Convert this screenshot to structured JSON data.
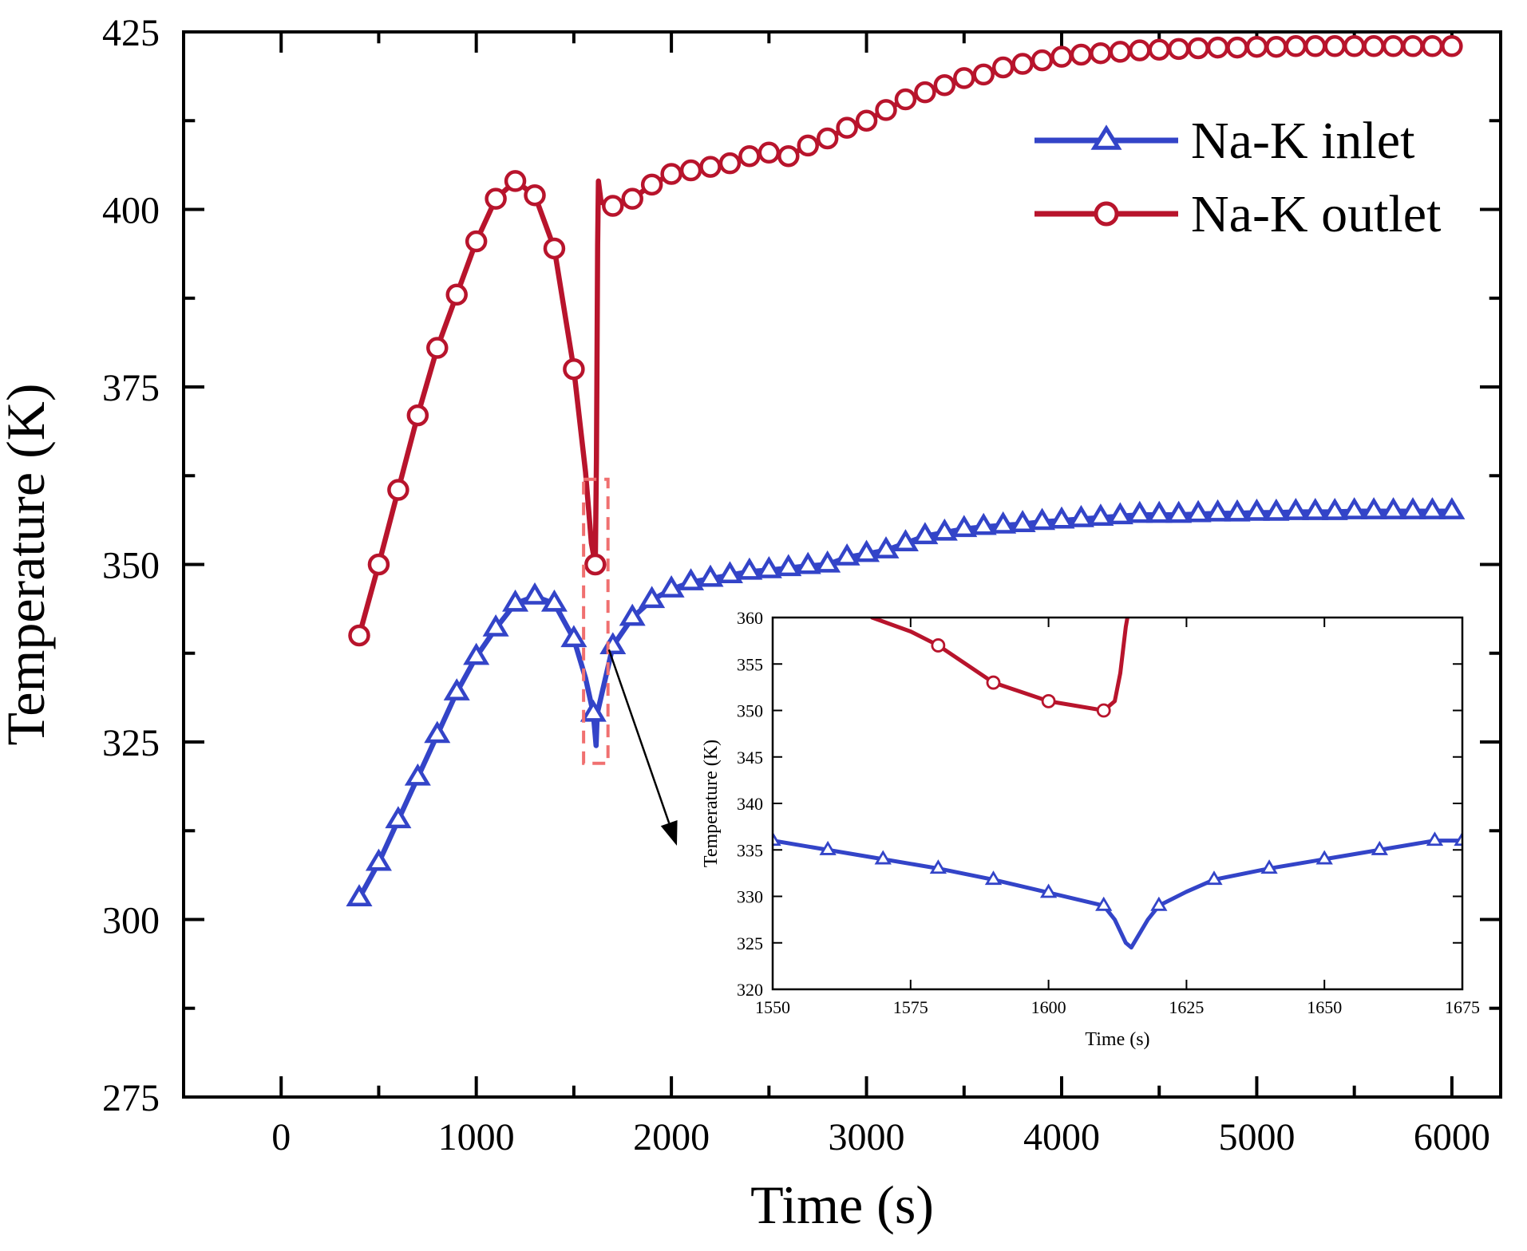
{
  "chart_data": [
    {
      "type": "line",
      "xlabel": "Time (s)",
      "ylabel": "Temperature (K)",
      "xlim": [
        -500,
        6250
      ],
      "ylim": [
        275,
        425
      ],
      "xticks": [
        0,
        1000,
        2000,
        3000,
        4000,
        5000,
        6000
      ],
      "yticks": [
        275,
        300,
        325,
        350,
        375,
        400,
        425
      ],
      "xtick_labels": [
        "0",
        "1000",
        "2000",
        "3000",
        "4000",
        "5000",
        "6000"
      ],
      "ytick_labels": [
        "275",
        "300",
        "325",
        "350",
        "375",
        "400",
        "425"
      ],
      "legend_position": "top-right",
      "grid": false,
      "series": [
        {
          "name": "Na-K inlet",
          "color": "#3344c8",
          "marker": "triangle",
          "x": [
            400,
            500,
            600,
            700,
            800,
            900,
            1000,
            1100,
            1200,
            1300,
            1400,
            1500,
            1560,
            1600,
            1614,
            1620,
            1700,
            1800,
            1900,
            2000,
            2100,
            2200,
            2300,
            2400,
            2500,
            2600,
            2700,
            2800,
            2900,
            3000,
            3100,
            3200,
            3300,
            3400,
            3500,
            3600,
            3700,
            3800,
            3900,
            4000,
            4100,
            4200,
            4300,
            4400,
            4500,
            4600,
            4700,
            4800,
            4900,
            5000,
            5100,
            5200,
            5300,
            5400,
            5500,
            5600,
            5700,
            5800,
            5900,
            6000
          ],
          "y": [
            303,
            308,
            314,
            320,
            326,
            332,
            337,
            341,
            344.5,
            345.5,
            344.5,
            339.5,
            334,
            329,
            324.5,
            329,
            338.5,
            342.5,
            345,
            346.5,
            347.5,
            348,
            348.5,
            349,
            349.2,
            349.5,
            349.8,
            350,
            351,
            351.5,
            352,
            353,
            354,
            354.5,
            355,
            355.3,
            355.5,
            355.7,
            356,
            356.2,
            356.4,
            356.6,
            356.8,
            357,
            357,
            357,
            357.1,
            357.2,
            357.2,
            357.3,
            357.3,
            357.4,
            357.4,
            357.4,
            357.5,
            357.5,
            357.5,
            357.5,
            357.5,
            357.5
          ],
          "markers_x": [
            400,
            500,
            600,
            700,
            800,
            900,
            1000,
            1100,
            1200,
            1300,
            1400,
            1500,
            1600,
            1700,
            1800,
            1900,
            2000,
            2100,
            2200,
            2300,
            2400,
            2500,
            2600,
            2700,
            2800,
            2900,
            3000,
            3100,
            3200,
            3300,
            3400,
            3500,
            3600,
            3700,
            3800,
            3900,
            4000,
            4100,
            4200,
            4300,
            4400,
            4500,
            4600,
            4700,
            4800,
            4900,
            5000,
            5100,
            5200,
            5300,
            5400,
            5500,
            5600,
            5700,
            5800,
            5900,
            6000
          ],
          "markers_y": [
            303,
            308,
            314,
            320,
            326,
            332,
            337,
            341,
            344.5,
            345.5,
            344.5,
            339.5,
            329,
            338.5,
            342.5,
            345,
            346.5,
            347.5,
            348,
            348.5,
            349,
            349.2,
            349.5,
            349.8,
            350,
            351,
            351.5,
            352,
            353,
            354,
            354.5,
            355,
            355.3,
            355.5,
            355.7,
            356,
            356.2,
            356.4,
            356.6,
            356.8,
            357,
            357,
            357,
            357.1,
            357.2,
            357.2,
            357.3,
            357.3,
            357.4,
            357.4,
            357.4,
            357.5,
            357.5,
            357.5,
            357.5,
            357.5,
            357.5
          ]
        },
        {
          "name": "Na-K outlet",
          "color": "#b8142c",
          "marker": "circle",
          "x": [
            400,
            500,
            600,
            700,
            800,
            900,
            1000,
            1100,
            1200,
            1300,
            1400,
            1500,
            1560,
            1590,
            1610,
            1616,
            1622,
            1626,
            1640,
            1700,
            1800,
            1900,
            2000,
            2100,
            2200,
            2300,
            2400,
            2500,
            2600,
            2700,
            2800,
            2900,
            3000,
            3100,
            3200,
            3300,
            3400,
            3500,
            3600,
            3700,
            3800,
            3900,
            4000,
            4100,
            4200,
            4300,
            4400,
            4500,
            4600,
            4700,
            4800,
            4900,
            5000,
            5100,
            5200,
            5300,
            5400,
            5500,
            5600,
            5700,
            5800,
            5900,
            6000
          ],
          "y": [
            340,
            350,
            360.5,
            371,
            380.5,
            388,
            395.5,
            401.5,
            404,
            402,
            394.5,
            377.5,
            363,
            353,
            350,
            365,
            395,
            404,
            401,
            400.5,
            401.5,
            403.5,
            405,
            405.5,
            406,
            406.5,
            407.5,
            408,
            407.5,
            409,
            410,
            411.5,
            412.5,
            414,
            415.5,
            416.5,
            417.5,
            418.5,
            419,
            420,
            420.5,
            421,
            421.5,
            421.8,
            422,
            422.2,
            422.4,
            422.5,
            422.6,
            422.7,
            422.8,
            422.8,
            422.9,
            422.9,
            423,
            423,
            423,
            423,
            423,
            423,
            423,
            423,
            423
          ],
          "markers_x": [
            400,
            500,
            600,
            700,
            800,
            900,
            1000,
            1100,
            1200,
            1300,
            1400,
            1500,
            1610,
            1700,
            1800,
            1900,
            2000,
            2100,
            2200,
            2300,
            2400,
            2500,
            2600,
            2700,
            2800,
            2900,
            3000,
            3100,
            3200,
            3300,
            3400,
            3500,
            3600,
            3700,
            3800,
            3900,
            4000,
            4100,
            4200,
            4300,
            4400,
            4500,
            4600,
            4700,
            4800,
            4900,
            5000,
            5100,
            5200,
            5300,
            5400,
            5500,
            5600,
            5700,
            5800,
            5900,
            6000
          ],
          "markers_y": [
            340,
            350,
            360.5,
            371,
            380.5,
            388,
            395.5,
            401.5,
            404,
            402,
            394.5,
            377.5,
            350,
            400.5,
            401.5,
            403.5,
            405,
            405.5,
            406,
            406.5,
            407.5,
            408,
            407.5,
            409,
            410,
            411.5,
            412.5,
            414,
            415.5,
            416.5,
            417.5,
            418.5,
            419,
            420,
            420.5,
            421,
            421.5,
            421.8,
            422,
            422.2,
            422.4,
            422.5,
            422.6,
            422.7,
            422.8,
            422.8,
            422.9,
            422.9,
            423,
            423,
            423,
            423,
            423,
            423,
            423,
            423,
            423
          ]
        }
      ],
      "zoom_region": {
        "x": [
          1550,
          1675
        ],
        "y": [
          322,
          362
        ],
        "color": "#f07070"
      }
    },
    {
      "type": "line",
      "role": "inset",
      "xlabel": "Time (s)",
      "ylabel": "Temperature (K)",
      "xlim": [
        1550,
        1675
      ],
      "ylim": [
        320,
        360
      ],
      "xticks": [
        1550,
        1575,
        1600,
        1625,
        1650,
        1675
      ],
      "yticks": [
        320,
        325,
        330,
        335,
        340,
        345,
        350,
        355,
        360
      ],
      "xtick_labels": [
        "1550",
        "1575",
        "1600",
        "1625",
        "1650",
        "1675"
      ],
      "ytick_labels": [
        "320",
        "325",
        "330",
        "335",
        "340",
        "345",
        "350",
        "355",
        "360"
      ],
      "grid": false,
      "series": [
        {
          "color": "#3344c8",
          "marker": "triangle",
          "x": [
            1550,
            1560,
            1570,
            1580,
            1590,
            1600,
            1610,
            1612,
            1614,
            1615,
            1616,
            1618,
            1620,
            1625,
            1630,
            1640,
            1650,
            1660,
            1670,
            1675
          ],
          "y": [
            336,
            335,
            334,
            333,
            331.8,
            330.4,
            329,
            327.5,
            325,
            324.5,
            325.5,
            327.5,
            329,
            330.5,
            331.8,
            333,
            334,
            335,
            336,
            336
          ],
          "markers_x": [
            1550,
            1560,
            1570,
            1580,
            1590,
            1600,
            1610,
            1620,
            1630,
            1640,
            1650,
            1660,
            1670,
            1675
          ],
          "markers_y": [
            336,
            335,
            334,
            333,
            331.8,
            330.4,
            329,
            329,
            331.8,
            333,
            334,
            335,
            336,
            336
          ]
        },
        {
          "color": "#b8142c",
          "marker": "circle",
          "x": [
            1568,
            1575,
            1580,
            1590,
            1600,
            1610,
            1612,
            1613,
            1613.6,
            1614,
            1614.3
          ],
          "y": [
            360,
            358.5,
            357,
            353,
            351,
            350,
            351,
            354,
            357,
            359,
            360
          ],
          "markers_x": [
            1580,
            1590,
            1600,
            1610
          ],
          "markers_y": [
            357,
            353,
            351,
            350
          ]
        }
      ]
    }
  ]
}
